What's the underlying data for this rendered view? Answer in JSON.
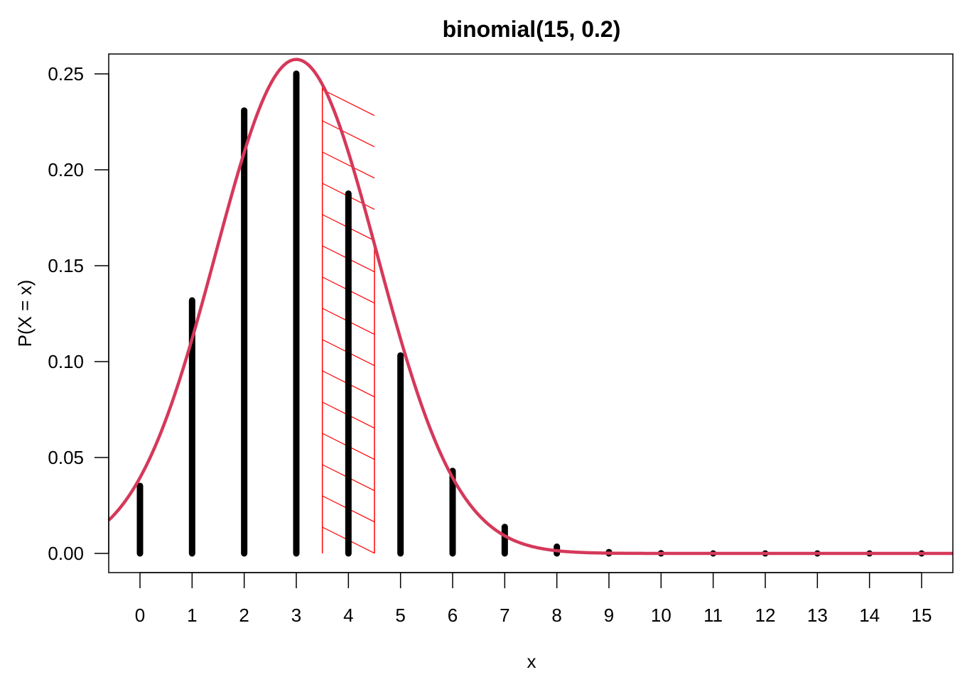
{
  "chart_data": {
    "type": "bar",
    "title": "binomial(15, 0.2)",
    "xlabel": "x",
    "ylabel": "P(X = x)",
    "xlim": [
      -0.6,
      15.6
    ],
    "ylim": [
      0,
      0.26
    ],
    "x_ticks": [
      "0",
      "1",
      "2",
      "3",
      "4",
      "5",
      "6",
      "7",
      "8",
      "9",
      "10",
      "11",
      "12",
      "13",
      "14",
      "15"
    ],
    "y_ticks": [
      "0.00",
      "0.05",
      "0.10",
      "0.15",
      "0.20",
      "0.25"
    ],
    "x": [
      0,
      1,
      2,
      3,
      4,
      5,
      6,
      7,
      8,
      9,
      10,
      11,
      12,
      13,
      14,
      15
    ],
    "values": [
      0.0352,
      0.1319,
      0.2309,
      0.2501,
      0.1876,
      0.1032,
      0.043,
      0.0138,
      0.0035,
      0.0007,
      0.0001,
      0.0,
      0.0,
      0.0,
      0.0,
      0.0
    ],
    "bar_color": "#000000",
    "normal_curve": {
      "mean": 3,
      "sd": 1.549,
      "color": "#D5395A"
    },
    "shaded_region": {
      "from": 3.5,
      "to": 4.5,
      "color": "#FF0000",
      "pattern": "hatched"
    },
    "grid": false
  }
}
